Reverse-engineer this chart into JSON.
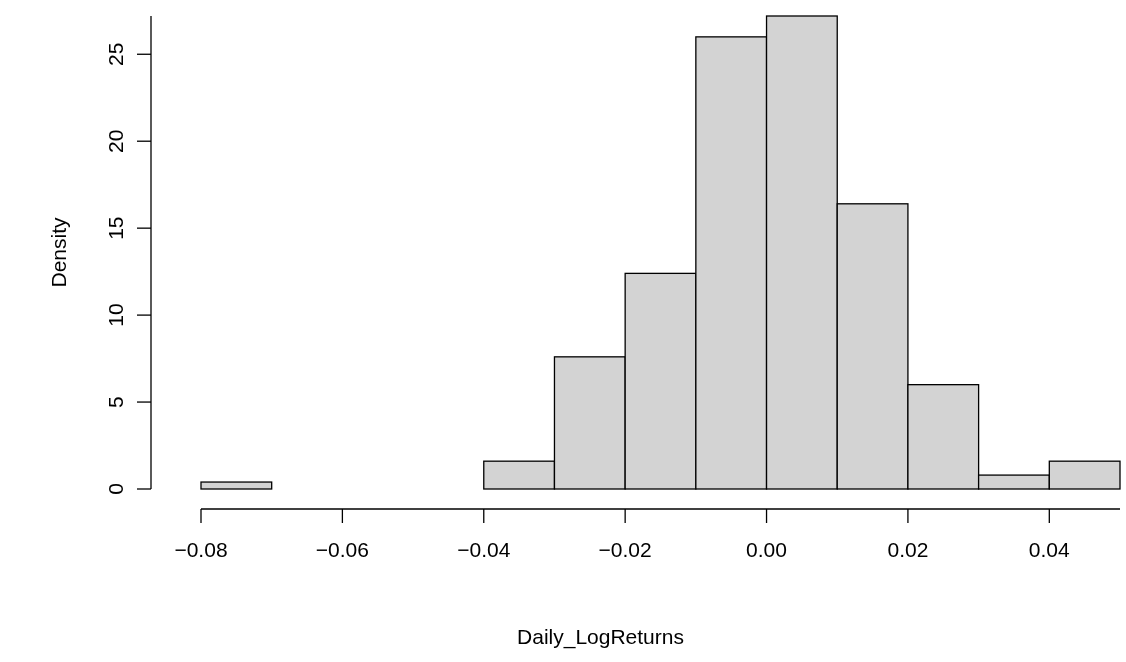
{
  "chart_data": {
    "type": "histogram",
    "xlabel": "Daily_LogReturns",
    "ylabel": "Density",
    "bins": [
      -0.08,
      -0.07,
      -0.06,
      -0.05,
      -0.04,
      -0.03,
      -0.02,
      -0.01,
      0,
      0.01,
      0.02,
      0.03,
      0.04,
      0.05
    ],
    "values": [
      0.4,
      0,
      0,
      0,
      1.6,
      7.6,
      12.4,
      26,
      27.2,
      16.4,
      6,
      0.8,
      1.6
    ],
    "color": "#d3d3d3",
    "xlim": [
      -0.08,
      0.05
    ],
    "xticks": [
      {
        "value": -0.08,
        "label": "−0.08"
      },
      {
        "value": -0.06,
        "label": "−0.06"
      },
      {
        "value": -0.04,
        "label": "−0.04"
      },
      {
        "value": -0.02,
        "label": "−0.02"
      },
      {
        "value": 0,
        "label": "0.00"
      },
      {
        "value": 0.02,
        "label": "0.02"
      },
      {
        "value": 0.04,
        "label": "0.04"
      }
    ],
    "ylim": [
      0,
      27.2
    ],
    "yticks": [
      0,
      5,
      10,
      15,
      20,
      25
    ],
    "grid": false
  }
}
